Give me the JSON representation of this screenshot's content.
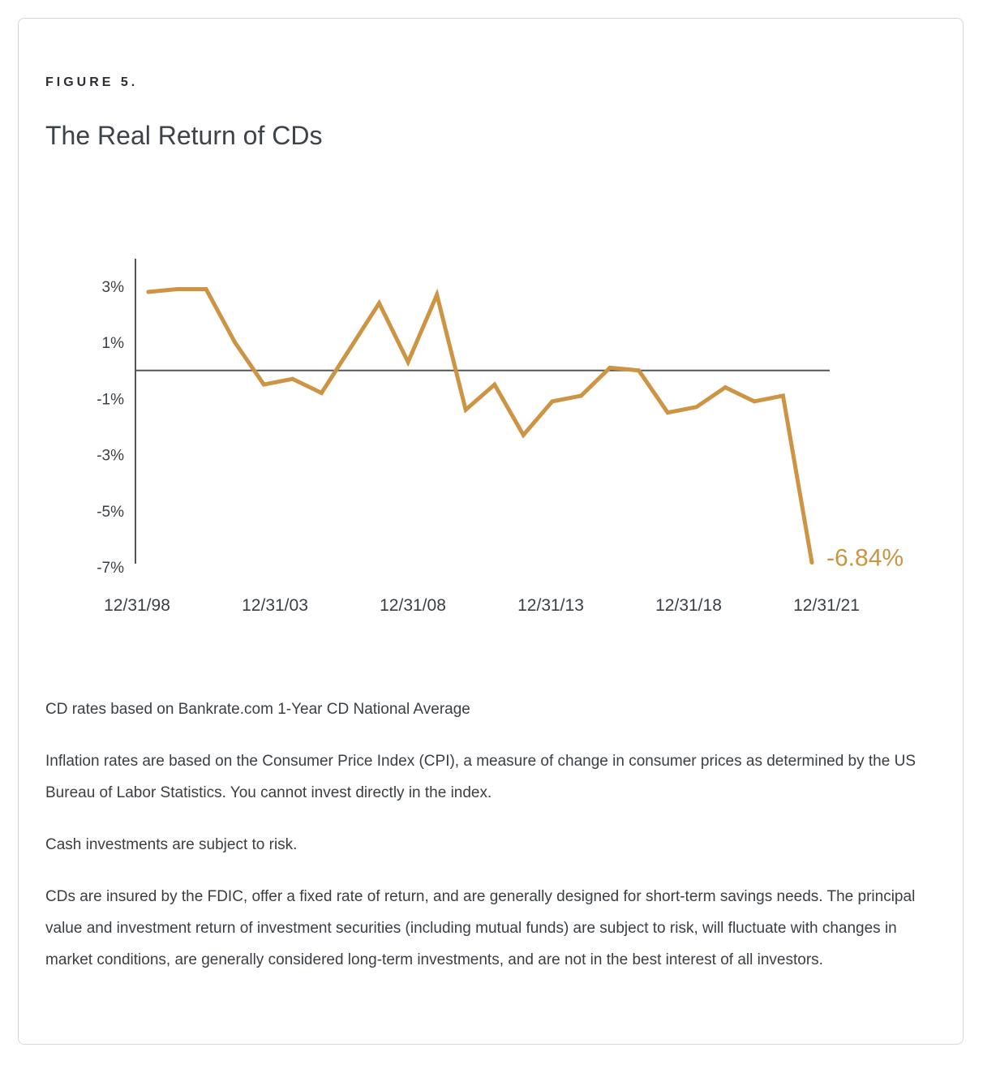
{
  "figure": {
    "label": "FIGURE 5.",
    "title": "The Real Return of CDs"
  },
  "colors": {
    "line": "#CC9443",
    "axis": "#555555",
    "text": "#3a3f44"
  },
  "chart_data": {
    "type": "line",
    "title": "The Real Return of CDs",
    "xlabel": "",
    "ylabel": "",
    "ylim": [
      -7,
      3.5
    ],
    "ytick_labels": [
      "3%",
      "1%",
      "-1%",
      "-3%",
      "-5%",
      "-7%"
    ],
    "ytick_values": [
      3,
      1,
      -1,
      -3,
      -5,
      -7
    ],
    "xtick_labels": [
      "12/31/98",
      "12/31/03",
      "12/31/08",
      "12/31/13",
      "12/31/18",
      "12/31/21"
    ],
    "reference_line": 0,
    "grid": false,
    "end_annotation": "-6.84%",
    "series": [
      {
        "values": [
          [
            0,
            2.8
          ],
          [
            1,
            2.9
          ],
          [
            2,
            2.9
          ],
          [
            3,
            1.0
          ],
          [
            4,
            -0.5
          ],
          [
            5,
            -0.3
          ],
          [
            6,
            -0.8
          ],
          [
            7,
            0.8
          ],
          [
            8,
            2.4
          ],
          [
            9,
            0.3
          ],
          [
            10,
            2.7
          ],
          [
            11,
            -1.4
          ],
          [
            12,
            -0.5
          ],
          [
            13,
            -2.3
          ],
          [
            14,
            -1.1
          ],
          [
            15,
            -0.9
          ],
          [
            16,
            0.1
          ],
          [
            17,
            0.0
          ],
          [
            18,
            -1.5
          ],
          [
            19,
            -1.3
          ],
          [
            20,
            -0.6
          ],
          [
            21,
            -1.1
          ],
          [
            22,
            -0.9
          ],
          [
            23,
            -6.84
          ]
        ]
      }
    ]
  },
  "notes": [
    "CD rates based on Bankrate.com 1-Year CD National Average",
    "Inflation rates are based on the Consumer Price Index (CPI), a measure of change in consumer prices as determined by the US Bureau of Labor Statistics. You cannot invest directly in the index.",
    "Cash investments are subject to risk.",
    "CDs are insured by the FDIC, offer a fixed rate of return, and are generally designed for short-term savings needs. The principal value and investment return of investment securities (including mutual funds) are subject to risk, will fluctuate with changes in market conditions, are generally considered long-term investments, and are not in the best interest of all investors."
  ]
}
